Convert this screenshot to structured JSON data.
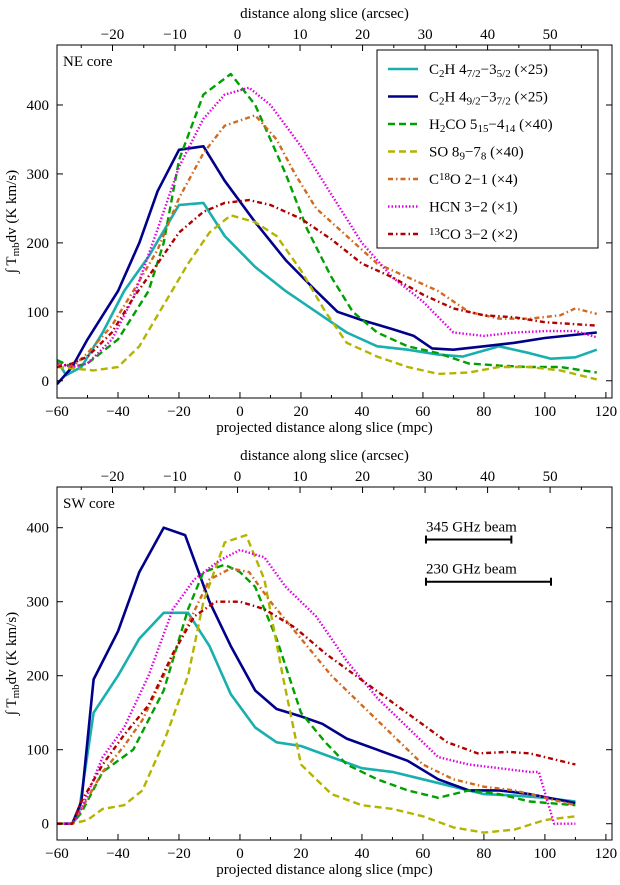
{
  "chart_data": [
    {
      "type": "line",
      "panel_label": "NE core",
      "xlabel": "projected distance along slice (mpc)",
      "ylabel": "∫ T_{mb}dv (K km/s)",
      "top_xlabel": "distance along slice (arcsec)",
      "xlim": [
        -60,
        122
      ],
      "ylim": [
        -25,
        487
      ],
      "xticks": [
        -60,
        -40,
        -20,
        0,
        20,
        40,
        60,
        80,
        100,
        120
      ],
      "yticks": [
        0,
        100,
        200,
        300,
        400
      ],
      "top_xticks_arcsec": [
        -20,
        -10,
        0,
        10,
        20,
        30,
        40,
        50
      ],
      "legend": "top-right",
      "series": [
        {
          "name": "C_{2}H 4_{7/2}−3_{5/2} (×25)",
          "color": "#1aafaf",
          "style": "solid",
          "x": [
            -60,
            -57,
            -52,
            -45,
            -38,
            -30,
            -20,
            -12,
            -5,
            5,
            15,
            25,
            35,
            45,
            55,
            65,
            73,
            85,
            95,
            102,
            110,
            117
          ],
          "y": [
            30,
            8,
            20,
            70,
            130,
            180,
            255,
            258,
            210,
            165,
            130,
            100,
            70,
            50,
            45,
            38,
            35,
            50,
            40,
            32,
            34,
            45
          ]
        },
        {
          "name": "C_{2}H 4_{9/2}−3_{7/2} (×25)",
          "color": "#00008b",
          "style": "solid",
          "x": [
            -60,
            -55,
            -50,
            -40,
            -33,
            -27,
            -20,
            -12,
            -5,
            5,
            15,
            25,
            32,
            40,
            50,
            57,
            63,
            70,
            80,
            90,
            100,
            117
          ],
          "y": [
            -5,
            20,
            60,
            130,
            200,
            275,
            335,
            340,
            290,
            230,
            175,
            130,
            100,
            88,
            75,
            65,
            47,
            45,
            50,
            55,
            62,
            70
          ]
        },
        {
          "name": "H_{2}CO 5_{15}−4_{14} (×40)",
          "color": "#00a000",
          "style": "dashed",
          "x": [
            -60,
            -55,
            -50,
            -40,
            -30,
            -25,
            -20,
            -12,
            -3,
            5,
            15,
            22,
            30,
            37,
            45,
            55,
            65,
            75,
            85,
            95,
            105,
            117
          ],
          "y": [
            30,
            20,
            25,
            60,
            130,
            200,
            320,
            415,
            445,
            400,
            300,
            220,
            150,
            100,
            70,
            50,
            40,
            25,
            22,
            20,
            20,
            12
          ]
        },
        {
          "name": "SO 8_{9}−7_{8} (×40)",
          "color": "#b4b400",
          "style": "dashed",
          "x": [
            -60,
            -55,
            -48,
            -40,
            -33,
            -25,
            -17,
            -10,
            -3,
            5,
            12,
            20,
            28,
            35,
            45,
            55,
            65,
            75,
            85,
            95,
            105,
            117
          ],
          "y": [
            20,
            18,
            15,
            20,
            50,
            110,
            170,
            215,
            240,
            230,
            210,
            160,
            100,
            55,
            35,
            20,
            10,
            12,
            20,
            20,
            15,
            2
          ]
        },
        {
          "name": "C^{18}O 2−1 (×4)",
          "color": "#d2691e",
          "style": "dashdot",
          "x": [
            -60,
            -55,
            -50,
            -42,
            -35,
            -27,
            -20,
            -12,
            -5,
            5,
            12,
            18,
            25,
            35,
            45,
            55,
            65,
            75,
            85,
            95,
            105,
            110,
            117
          ],
          "y": [
            25,
            20,
            40,
            80,
            130,
            190,
            265,
            330,
            370,
            385,
            350,
            300,
            250,
            210,
            170,
            150,
            130,
            100,
            90,
            90,
            95,
            105,
            97
          ]
        },
        {
          "name": "HCN 3−2 (×1)",
          "color": "#e000e0",
          "style": "dotted",
          "x": [
            -60,
            -55,
            -50,
            -42,
            -35,
            -27,
            -20,
            -12,
            -5,
            3,
            10,
            20,
            30,
            40,
            50,
            60,
            70,
            80,
            90,
            100,
            110,
            117
          ],
          "y": [
            25,
            20,
            25,
            60,
            120,
            220,
            310,
            380,
            415,
            425,
            400,
            340,
            270,
            200,
            150,
            115,
            70,
            65,
            70,
            72,
            72,
            63
          ]
        },
        {
          "name": "^{13}CO 3−2 (×2)",
          "color": "#b00000",
          "style": "dashdot",
          "x": [
            -60,
            -55,
            -50,
            -42,
            -35,
            -27,
            -20,
            -12,
            -5,
            3,
            10,
            20,
            30,
            40,
            50,
            60,
            70,
            80,
            90,
            100,
            110,
            117
          ],
          "y": [
            20,
            25,
            35,
            70,
            120,
            170,
            215,
            245,
            258,
            262,
            255,
            235,
            205,
            170,
            150,
            125,
            105,
            95,
            92,
            85,
            82,
            80
          ]
        }
      ]
    },
    {
      "type": "line",
      "panel_label": "SW core",
      "xlabel": "projected distance along slice (mpc)",
      "ylabel": "∫ T_{mb}dv (K km/s)",
      "top_xlabel": "distance along slice (arcsec)",
      "xlim": [
        -60,
        122
      ],
      "ylim": [
        -22,
        455
      ],
      "xticks": [
        -60,
        -40,
        -20,
        0,
        20,
        40,
        60,
        80,
        100,
        120
      ],
      "yticks": [
        0,
        100,
        200,
        300,
        400
      ],
      "top_xticks_arcsec": [
        -20,
        -10,
        0,
        10,
        20,
        30,
        40,
        50
      ],
      "annotations": [
        {
          "text": "345 GHz beam",
          "x_start": 61,
          "x_end": 89,
          "y": 384
        },
        {
          "text": "230 GHz beam",
          "x_start": 61,
          "x_end": 102,
          "y": 327
        }
      ],
      "series": [
        {
          "color": "#1aafaf",
          "style": "solid",
          "x": [
            -60,
            -55,
            -53,
            -48,
            -40,
            -33,
            -25,
            -17,
            -10,
            -3,
            5,
            12,
            20,
            30,
            40,
            50,
            60,
            70,
            80,
            90,
            100,
            110
          ],
          "y": [
            0,
            0,
            10,
            150,
            200,
            250,
            285,
            285,
            240,
            175,
            130,
            110,
            105,
            90,
            75,
            70,
            60,
            50,
            40,
            38,
            35,
            30
          ]
        },
        {
          "color": "#00008b",
          "style": "solid",
          "x": [
            -60,
            -55,
            -52,
            -48,
            -40,
            -33,
            -25,
            -18,
            -10,
            -3,
            5,
            12,
            20,
            27,
            35,
            45,
            55,
            65,
            75,
            85,
            95,
            110
          ],
          "y": [
            0,
            0,
            30,
            195,
            260,
            340,
            400,
            390,
            300,
            240,
            180,
            155,
            145,
            135,
            115,
            100,
            85,
            60,
            45,
            45,
            40,
            28
          ]
        },
        {
          "color": "#00a000",
          "style": "dashed",
          "x": [
            -60,
            -55,
            -52,
            -45,
            -35,
            -25,
            -17,
            -12,
            -5,
            0,
            5,
            12,
            20,
            28,
            35,
            45,
            55,
            65,
            75,
            85,
            95,
            110
          ],
          "y": [
            0,
            0,
            15,
            70,
            100,
            180,
            290,
            340,
            350,
            340,
            320,
            250,
            150,
            110,
            80,
            60,
            45,
            35,
            45,
            40,
            30,
            25
          ]
        },
        {
          "color": "#b4b400",
          "style": "dashed",
          "x": [
            -60,
            -55,
            -50,
            -45,
            -38,
            -32,
            -25,
            -17,
            -12,
            -5,
            2,
            8,
            14,
            20,
            30,
            40,
            50,
            60,
            70,
            80,
            90,
            100,
            110
          ],
          "y": [
            0,
            0,
            5,
            20,
            25,
            45,
            110,
            200,
            300,
            380,
            390,
            330,
            200,
            80,
            40,
            25,
            20,
            10,
            -5,
            -12,
            -8,
            5,
            10
          ]
        },
        {
          "color": "#d2691e",
          "style": "dashdot",
          "x": [
            -60,
            -55,
            -52,
            -45,
            -38,
            -32,
            -25,
            -17,
            -10,
            -3,
            3,
            10,
            20,
            30,
            40,
            50,
            60,
            70,
            80,
            90,
            100,
            110
          ],
          "y": [
            0,
            0,
            20,
            70,
            105,
            140,
            200,
            270,
            330,
            345,
            340,
            300,
            250,
            200,
            160,
            120,
            80,
            60,
            50,
            45,
            35,
            25
          ]
        },
        {
          "color": "#e000e0",
          "style": "dotted",
          "x": [
            -60,
            -55,
            -52,
            -45,
            -38,
            -30,
            -22,
            -15,
            -7,
            0,
            8,
            15,
            25,
            35,
            45,
            55,
            65,
            75,
            85,
            95,
            98,
            103,
            110
          ],
          "y": [
            0,
            0,
            20,
            90,
            130,
            200,
            290,
            330,
            355,
            370,
            360,
            320,
            280,
            220,
            170,
            130,
            90,
            80,
            75,
            70,
            70,
            0,
            0
          ]
        },
        {
          "color": "#b00000",
          "style": "dashdot",
          "x": [
            -60,
            -55,
            -52,
            -45,
            -38,
            -30,
            -22,
            -15,
            -8,
            0,
            8,
            18,
            28,
            38,
            48,
            58,
            68,
            78,
            88,
            95,
            100,
            110
          ],
          "y": [
            0,
            0,
            30,
            80,
            120,
            160,
            230,
            280,
            300,
            300,
            290,
            265,
            230,
            200,
            170,
            140,
            110,
            95,
            97,
            95,
            90,
            80
          ]
        }
      ]
    }
  ]
}
